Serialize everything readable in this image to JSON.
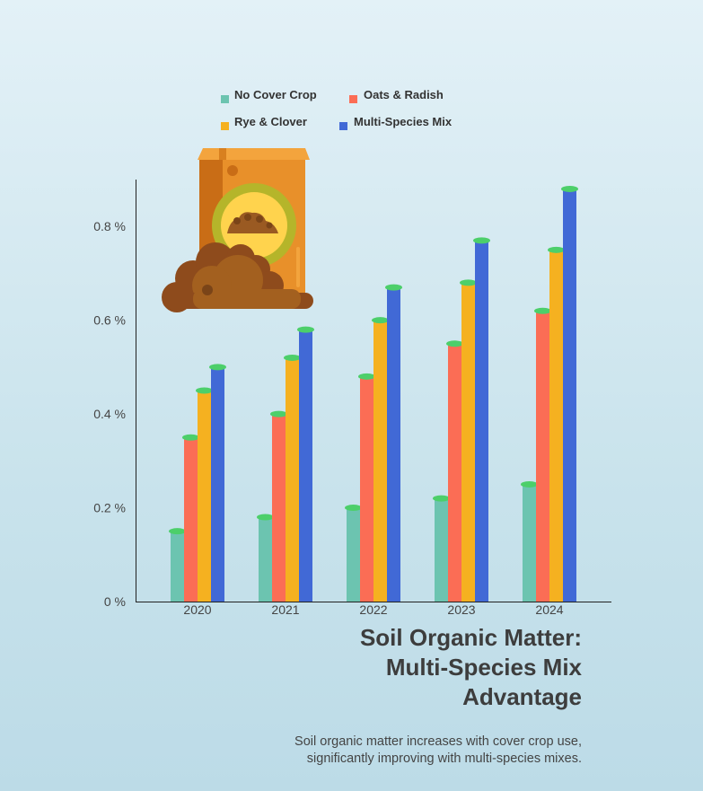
{
  "chart_data": {
    "type": "bar",
    "categories": [
      "2020",
      "2021",
      "2022",
      "2023",
      "2024"
    ],
    "series": [
      {
        "name": "No Cover Crop",
        "color": "#6cc4b0",
        "values": [
          0.15,
          0.18,
          0.2,
          0.22,
          0.25
        ]
      },
      {
        "name": "Oats & Radish",
        "color": "#fb6d55",
        "values": [
          0.35,
          0.4,
          0.48,
          0.55,
          0.62
        ]
      },
      {
        "name": "Rye & Clover",
        "color": "#f5b120",
        "values": [
          0.45,
          0.52,
          0.6,
          0.68,
          0.75
        ]
      },
      {
        "name": "Multi-Species Mix",
        "color": "#4169d6",
        "values": [
          0.5,
          0.58,
          0.67,
          0.77,
          0.88
        ]
      }
    ],
    "cap_color": "#4ccf6a",
    "ylim": [
      0,
      0.9
    ],
    "yticks": [
      0,
      0.2,
      0.4,
      0.6,
      0.8
    ],
    "ytick_labels": [
      "0 %",
      "0.2 %",
      "0.4 %",
      "0.6 %",
      "0.8 %"
    ],
    "title_lines": [
      "Soil Organic Matter:",
      "Multi-Species Mix",
      "Advantage"
    ],
    "subtitle_lines": [
      "Soil organic matter increases with cover crop use,",
      "significantly improving with multi-species mixes."
    ],
    "legend_placement": "top-center",
    "grid": false,
    "illustration_icon": "soil-bag-icon"
  }
}
